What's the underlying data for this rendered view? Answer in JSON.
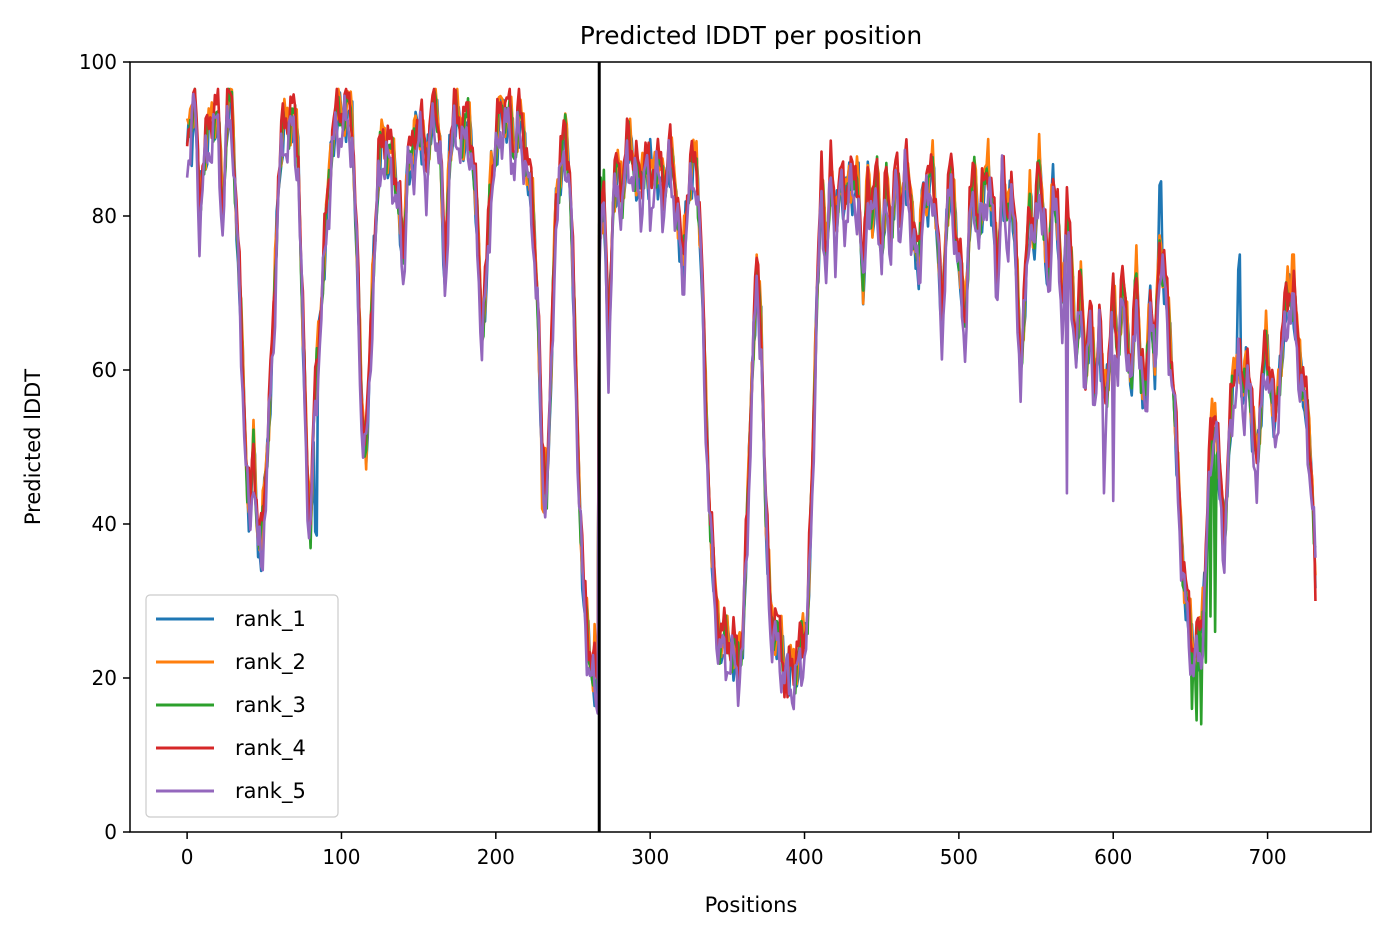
{
  "chart_data": {
    "type": "line",
    "title": "Predicted lDDT per position",
    "xlabel": "Positions",
    "ylabel": "Predicted lDDT",
    "xlim": [
      -37,
      767
    ],
    "ylim": [
      0,
      100
    ],
    "xticks": [
      0,
      100,
      200,
      300,
      400,
      500,
      600,
      700
    ],
    "yticks": [
      0,
      20,
      40,
      60,
      80,
      100
    ],
    "grid": false,
    "legend_position": "lower-left",
    "vline_x": 267,
    "colors": {
      "rank_1": "#1f77b4",
      "rank_2": "#ff7f0e",
      "rank_3": "#2ca02c",
      "rank_4": "#d62728",
      "rank_5": "#9467bd",
      "vline": "#000000"
    },
    "base_profile": [
      [
        0,
        88
      ],
      [
        3,
        94
      ],
      [
        5,
        95
      ],
      [
        8,
        80
      ],
      [
        10,
        86
      ],
      [
        14,
        90
      ],
      [
        17,
        93
      ],
      [
        20,
        92
      ],
      [
        23,
        80
      ],
      [
        26,
        93
      ],
      [
        29,
        94
      ],
      [
        33,
        75
      ],
      [
        36,
        60
      ],
      [
        39,
        45
      ],
      [
        41,
        40
      ],
      [
        43,
        50
      ],
      [
        46,
        38
      ],
      [
        48,
        36
      ],
      [
        52,
        50
      ],
      [
        56,
        65
      ],
      [
        59,
        84
      ],
      [
        62,
        90
      ],
      [
        65,
        92
      ],
      [
        69,
        92
      ],
      [
        72,
        88
      ],
      [
        75,
        65
      ],
      [
        78,
        45
      ],
      [
        80,
        40
      ],
      [
        82,
        52
      ],
      [
        86,
        66
      ],
      [
        90,
        78
      ],
      [
        94,
        90
      ],
      [
        97,
        92
      ],
      [
        100,
        93
      ],
      [
        104,
        93
      ],
      [
        107,
        92
      ],
      [
        110,
        75
      ],
      [
        113,
        55
      ],
      [
        116,
        50
      ],
      [
        118,
        58
      ],
      [
        121,
        75
      ],
      [
        124,
        85
      ],
      [
        127,
        90
      ],
      [
        130,
        88
      ],
      [
        134,
        86
      ],
      [
        137,
        82
      ],
      [
        140,
        73
      ],
      [
        143,
        88
      ],
      [
        146,
        86
      ],
      [
        149,
        92
      ],
      [
        152,
        90
      ],
      [
        155,
        86
      ],
      [
        158,
        92
      ],
      [
        161,
        93
      ],
      [
        164,
        90
      ],
      [
        167,
        70
      ],
      [
        170,
        88
      ],
      [
        173,
        92
      ],
      [
        176,
        92
      ],
      [
        179,
        90
      ],
      [
        182,
        92
      ],
      [
        185,
        88
      ],
      [
        188,
        78
      ],
      [
        191,
        65
      ],
      [
        194,
        72
      ],
      [
        197,
        85
      ],
      [
        200,
        88
      ],
      [
        203,
        93
      ],
      [
        206,
        93
      ],
      [
        209,
        92
      ],
      [
        212,
        88
      ],
      [
        215,
        92
      ],
      [
        218,
        90
      ],
      [
        221,
        85
      ],
      [
        224,
        80
      ],
      [
        227,
        70
      ],
      [
        230,
        48
      ],
      [
        233,
        45
      ],
      [
        236,
        60
      ],
      [
        239,
        82
      ],
      [
        242,
        86
      ],
      [
        245,
        90
      ],
      [
        248,
        85
      ],
      [
        251,
        65
      ],
      [
        254,
        45
      ],
      [
        257,
        30
      ],
      [
        260,
        24
      ],
      [
        263,
        20
      ],
      [
        266,
        18
      ],
      [
        267,
        78
      ],
      [
        270,
        82
      ],
      [
        273,
        62
      ],
      [
        276,
        82
      ],
      [
        279,
        85
      ],
      [
        282,
        83
      ],
      [
        285,
        88
      ],
      [
        288,
        88
      ],
      [
        291,
        85
      ],
      [
        294,
        83
      ],
      [
        297,
        88
      ],
      [
        300,
        82
      ],
      [
        303,
        87
      ],
      [
        306,
        85
      ],
      [
        309,
        83
      ],
      [
        312,
        87
      ],
      [
        315,
        85
      ],
      [
        318,
        80
      ],
      [
        321,
        72
      ],
      [
        324,
        82
      ],
      [
        327,
        85
      ],
      [
        330,
        87
      ],
      [
        333,
        75
      ],
      [
        336,
        55
      ],
      [
        339,
        40
      ],
      [
        342,
        30
      ],
      [
        345,
        25
      ],
      [
        348,
        24
      ],
      [
        351,
        24
      ],
      [
        354,
        23
      ],
      [
        357,
        22
      ],
      [
        360,
        25
      ],
      [
        363,
        40
      ],
      [
        366,
        60
      ],
      [
        369,
        72
      ],
      [
        372,
        65
      ],
      [
        375,
        40
      ],
      [
        378,
        28
      ],
      [
        381,
        26
      ],
      [
        384,
        24
      ],
      [
        387,
        22
      ],
      [
        390,
        20
      ],
      [
        393,
        21
      ],
      [
        396,
        22
      ],
      [
        399,
        24
      ],
      [
        402,
        28
      ],
      [
        405,
        45
      ],
      [
        408,
        70
      ],
      [
        411,
        83
      ],
      [
        414,
        75
      ],
      [
        417,
        85
      ],
      [
        420,
        78
      ],
      [
        423,
        85
      ],
      [
        426,
        80
      ],
      [
        429,
        86
      ],
      [
        432,
        82
      ],
      [
        435,
        84
      ],
      [
        438,
        70
      ],
      [
        441,
        85
      ],
      [
        444,
        80
      ],
      [
        447,
        84
      ],
      [
        450,
        75
      ],
      [
        453,
        83
      ],
      [
        456,
        78
      ],
      [
        459,
        85
      ],
      [
        462,
        80
      ],
      [
        465,
        86
      ],
      [
        468,
        82
      ],
      [
        471,
        78
      ],
      [
        474,
        72
      ],
      [
        477,
        84
      ],
      [
        480,
        82
      ],
      [
        483,
        86
      ],
      [
        486,
        78
      ],
      [
        489,
        65
      ],
      [
        492,
        80
      ],
      [
        495,
        85
      ],
      [
        498,
        78
      ],
      [
        501,
        72
      ],
      [
        504,
        65
      ],
      [
        507,
        80
      ],
      [
        510,
        84
      ],
      [
        513,
        78
      ],
      [
        516,
        82
      ],
      [
        519,
        86
      ],
      [
        522,
        80
      ],
      [
        525,
        72
      ],
      [
        528,
        85
      ],
      [
        531,
        78
      ],
      [
        534,
        84
      ],
      [
        537,
        74
      ],
      [
        540,
        60
      ],
      [
        543,
        70
      ],
      [
        546,
        82
      ],
      [
        549,
        76
      ],
      [
        552,
        86
      ],
      [
        555,
        80
      ],
      [
        558,
        70
      ],
      [
        561,
        85
      ],
      [
        564,
        78
      ],
      [
        567,
        68
      ],
      [
        570,
        80
      ],
      [
        573,
        72
      ],
      [
        576,
        62
      ],
      [
        579,
        70
      ],
      [
        582,
        60
      ],
      [
        585,
        66
      ],
      [
        588,
        58
      ],
      [
        591,
        65
      ],
      [
        594,
        55
      ],
      [
        597,
        60
      ],
      [
        600,
        68
      ],
      [
        603,
        62
      ],
      [
        606,
        70
      ],
      [
        609,
        65
      ],
      [
        612,
        58
      ],
      [
        615,
        72
      ],
      [
        618,
        60
      ],
      [
        621,
        55
      ],
      [
        624,
        70
      ],
      [
        627,
        60
      ],
      [
        630,
        76
      ],
      [
        633,
        72
      ],
      [
        636,
        65
      ],
      [
        639,
        58
      ],
      [
        642,
        45
      ],
      [
        645,
        35
      ],
      [
        648,
        28
      ],
      [
        651,
        24
      ],
      [
        654,
        23
      ],
      [
        657,
        25
      ],
      [
        660,
        35
      ],
      [
        663,
        50
      ],
      [
        666,
        55
      ],
      [
        669,
        45
      ],
      [
        672,
        38
      ],
      [
        675,
        50
      ],
      [
        678,
        58
      ],
      [
        681,
        62
      ],
      [
        684,
        55
      ],
      [
        687,
        62
      ],
      [
        690,
        52
      ],
      [
        693,
        48
      ],
      [
        696,
        56
      ],
      [
        699,
        63
      ],
      [
        702,
        58
      ],
      [
        705,
        52
      ],
      [
        708,
        60
      ],
      [
        711,
        66
      ],
      [
        714,
        70
      ],
      [
        717,
        68
      ],
      [
        720,
        62
      ],
      [
        723,
        58
      ],
      [
        726,
        52
      ],
      [
        729,
        45
      ],
      [
        731,
        35
      ]
    ],
    "series": [
      {
        "name": "rank_1",
        "offset": 0,
        "amplitude": 2.2,
        "phase": 0.3,
        "tweaks": [
          [
            3,
            86.5
          ],
          [
            83,
            39
          ],
          [
            84,
            38.5
          ],
          [
            630,
            84
          ],
          [
            631,
            84.5
          ],
          [
            660,
            34
          ],
          [
            663,
            34
          ],
          [
            681,
            73
          ],
          [
            682,
            75
          ],
          [
            300,
            90
          ]
        ]
      },
      {
        "name": "rank_2",
        "offset": 1,
        "amplitude": 2.5,
        "phase": 1.1,
        "tweaks": [
          [
            230,
            42
          ],
          [
            231,
            41.5
          ],
          [
            264,
            27
          ],
          [
            369,
            75
          ],
          [
            519,
            90
          ],
          [
            716,
            75
          ],
          [
            717,
            75
          ]
        ]
      },
      {
        "name": "rank_3",
        "offset": 0.5,
        "amplitude": 2.4,
        "phase": 2.0,
        "tweaks": [
          [
            268,
            85
          ],
          [
            270,
            86
          ],
          [
            651,
            16
          ],
          [
            654,
            14.5
          ],
          [
            657,
            14
          ],
          [
            660,
            22
          ],
          [
            663,
            28
          ],
          [
            666,
            26
          ]
        ]
      },
      {
        "name": "rank_4",
        "offset": 1.5,
        "amplitude": 2.6,
        "phase": 2.7,
        "tweaks": [
          [
            4,
            96
          ],
          [
            357,
            18
          ],
          [
            387,
            17.5
          ],
          [
            389,
            17.5
          ],
          [
            731,
            30
          ]
        ]
      },
      {
        "name": "rank_5",
        "offset": -1.5,
        "amplitude": 2.8,
        "phase": 3.6,
        "tweaks": [
          [
            48,
            34.5
          ],
          [
            49,
            34
          ],
          [
            570,
            44
          ],
          [
            594,
            44
          ],
          [
            600,
            43
          ]
        ]
      }
    ],
    "legend": [
      "rank_1",
      "rank_2",
      "rank_3",
      "rank_4",
      "rank_5"
    ]
  }
}
